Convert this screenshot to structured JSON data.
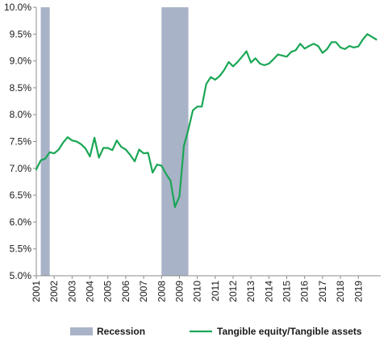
{
  "chart_data": {
    "type": "line",
    "title": "",
    "xlabel": "",
    "ylabel": "",
    "ylim": [
      5.0,
      10.0
    ],
    "yticks": [
      "5.0%",
      "5.5%",
      "6.0%",
      "6.5%",
      "7.0%",
      "7.5%",
      "8.0%",
      "8.5%",
      "9.0%",
      "9.5%",
      "10.0%"
    ],
    "xlim": [
      2001.0,
      2020.25
    ],
    "xticks": [
      "2001",
      "2002",
      "2003",
      "2004",
      "2005",
      "2006",
      "2007",
      "2008",
      "2009",
      "2010",
      "2011",
      "2012",
      "2013",
      "2014",
      "2015",
      "2016",
      "2017",
      "2018",
      "2019"
    ],
    "grid": false,
    "legend_position": "bottom",
    "recession_periods": [
      [
        2001.25,
        2001.75
      ],
      [
        2008.0,
        2009.5
      ]
    ],
    "series": [
      {
        "name": "Tangible equity/Tangible assets",
        "color": "#1aa655",
        "points": [
          [
            2001.0,
            6.98
          ],
          [
            2001.25,
            7.15
          ],
          [
            2001.5,
            7.18
          ],
          [
            2001.75,
            7.3
          ],
          [
            2002.0,
            7.28
          ],
          [
            2002.25,
            7.35
          ],
          [
            2002.5,
            7.48
          ],
          [
            2002.75,
            7.58
          ],
          [
            2003.0,
            7.52
          ],
          [
            2003.25,
            7.5
          ],
          [
            2003.5,
            7.45
          ],
          [
            2003.75,
            7.37
          ],
          [
            2004.0,
            7.22
          ],
          [
            2004.25,
            7.57
          ],
          [
            2004.5,
            7.2
          ],
          [
            2004.75,
            7.38
          ],
          [
            2005.0,
            7.38
          ],
          [
            2005.25,
            7.34
          ],
          [
            2005.5,
            7.52
          ],
          [
            2005.75,
            7.4
          ],
          [
            2006.0,
            7.35
          ],
          [
            2006.25,
            7.25
          ],
          [
            2006.5,
            7.13
          ],
          [
            2006.75,
            7.35
          ],
          [
            2007.0,
            7.28
          ],
          [
            2007.25,
            7.29
          ],
          [
            2007.5,
            6.92
          ],
          [
            2007.75,
            7.07
          ],
          [
            2008.0,
            7.05
          ],
          [
            2008.25,
            6.9
          ],
          [
            2008.5,
            6.77
          ],
          [
            2008.75,
            6.28
          ],
          [
            2009.0,
            6.48
          ],
          [
            2009.25,
            7.42
          ],
          [
            2009.5,
            7.72
          ],
          [
            2009.75,
            8.08
          ],
          [
            2010.0,
            8.15
          ],
          [
            2010.25,
            8.15
          ],
          [
            2010.5,
            8.57
          ],
          [
            2010.75,
            8.7
          ],
          [
            2011.0,
            8.65
          ],
          [
            2011.25,
            8.72
          ],
          [
            2011.5,
            8.83
          ],
          [
            2011.75,
            8.98
          ],
          [
            2012.0,
            8.9
          ],
          [
            2012.25,
            8.98
          ],
          [
            2012.5,
            9.08
          ],
          [
            2012.75,
            9.18
          ],
          [
            2013.0,
            8.97
          ],
          [
            2013.25,
            9.05
          ],
          [
            2013.5,
            8.95
          ],
          [
            2013.75,
            8.92
          ],
          [
            2014.0,
            8.95
          ],
          [
            2014.25,
            9.03
          ],
          [
            2014.5,
            9.12
          ],
          [
            2014.75,
            9.1
          ],
          [
            2015.0,
            9.08
          ],
          [
            2015.25,
            9.17
          ],
          [
            2015.5,
            9.2
          ],
          [
            2015.75,
            9.32
          ],
          [
            2016.0,
            9.23
          ],
          [
            2016.25,
            9.28
          ],
          [
            2016.5,
            9.32
          ],
          [
            2016.75,
            9.28
          ],
          [
            2017.0,
            9.15
          ],
          [
            2017.25,
            9.22
          ],
          [
            2017.5,
            9.35
          ],
          [
            2017.75,
            9.35
          ],
          [
            2018.0,
            9.25
          ],
          [
            2018.25,
            9.22
          ],
          [
            2018.5,
            9.28
          ],
          [
            2018.75,
            9.25
          ],
          [
            2019.0,
            9.27
          ],
          [
            2019.25,
            9.4
          ],
          [
            2019.5,
            9.5
          ],
          [
            2019.75,
            9.45
          ],
          [
            2020.0,
            9.4
          ]
        ]
      }
    ],
    "legend": [
      {
        "label": "Recession",
        "kind": "band",
        "color": "#a9b3c8"
      },
      {
        "label": "Tangible equity/Tangible assets",
        "kind": "line",
        "color": "#1aa655"
      }
    ]
  }
}
